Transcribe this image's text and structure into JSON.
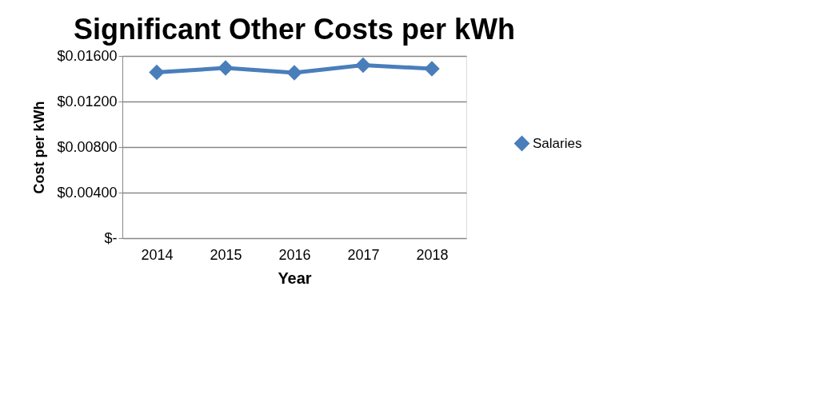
{
  "chart_data": {
    "type": "line",
    "title": "Significant Other Costs per kWh",
    "xlabel": "Year",
    "ylabel": "Cost per kWh",
    "categories": [
      "2014",
      "2015",
      "2016",
      "2017",
      "2018"
    ],
    "series": [
      {
        "name": "Salaries",
        "color": "#4a7ebb",
        "values": [
          0.01456,
          0.01495,
          0.01453,
          0.01519,
          0.01488
        ]
      }
    ],
    "ylim": [
      0,
      0.016
    ],
    "yticks": [
      {
        "value": 0,
        "label": "$-"
      },
      {
        "value": 0.004,
        "label": "$0.00400"
      },
      {
        "value": 0.008,
        "label": "$0.00800"
      },
      {
        "value": 0.012,
        "label": "$0.01200"
      },
      {
        "value": 0.016,
        "label": "$0.01600"
      }
    ],
    "grid": "y",
    "legend": "right",
    "marker": "diamond",
    "line_style": "solid"
  }
}
